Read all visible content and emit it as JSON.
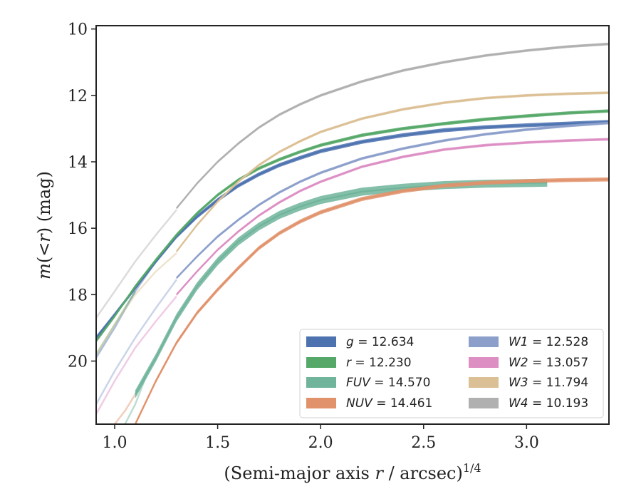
{
  "chart_data": {
    "type": "line",
    "title": "",
    "xlabel_main": "(Semi-major axis ",
    "xlabel_var": "r",
    "xlabel_tail": " / arcsec)",
    "xlabel_sup": "1/4",
    "ylabel_var1": "m",
    "ylabel_mid": "(<",
    "ylabel_var2": "r",
    "ylabel_tail": ") (mag)",
    "xlim": [
      0.91,
      3.4
    ],
    "ylim": [
      21.9,
      9.9
    ],
    "y_inverted": true,
    "xticks": [
      1.0,
      1.5,
      2.0,
      2.5,
      3.0
    ],
    "xtick_labels": [
      "1.0",
      "1.5",
      "2.0",
      "2.5",
      "3.0"
    ],
    "yticks": [
      10,
      12,
      14,
      16,
      18,
      20
    ],
    "ytick_labels": [
      "10",
      "12",
      "14",
      "16",
      "18",
      "20"
    ],
    "grid": false,
    "legend_position": "lower-right",
    "series": [
      {
        "band": "g",
        "label_value": "12.634",
        "color": "#4c72b0",
        "band_width": 0.06,
        "x": [
          0.91,
          1.0,
          1.1,
          1.2,
          1.3,
          1.4,
          1.5,
          1.6,
          1.7,
          1.8,
          1.9,
          2.0,
          2.2,
          2.4,
          2.6,
          2.8,
          3.0,
          3.2,
          3.4
        ],
        "y": [
          19.3,
          18.6,
          17.8,
          17.0,
          16.25,
          15.65,
          15.15,
          14.72,
          14.38,
          14.1,
          13.88,
          13.68,
          13.4,
          13.2,
          13.05,
          12.96,
          12.9,
          12.85,
          12.8
        ]
      },
      {
        "band": "r",
        "label_value": "12.230",
        "color": "#55a868",
        "band_width": 0.05,
        "x": [
          0.91,
          1.0,
          1.1,
          1.2,
          1.3,
          1.4,
          1.5,
          1.6,
          1.7,
          1.8,
          1.9,
          2.0,
          2.2,
          2.4,
          2.6,
          2.8,
          3.0,
          3.2,
          3.4
        ],
        "y": [
          19.4,
          18.65,
          17.75,
          16.95,
          16.2,
          15.55,
          15.0,
          14.55,
          14.2,
          13.93,
          13.7,
          13.5,
          13.2,
          13.0,
          12.85,
          12.72,
          12.62,
          12.53,
          12.47
        ]
      },
      {
        "band": "FUV",
        "label_value": "14.570",
        "color": "#6fb49b",
        "band_width": 0.12,
        "x": [
          1.1,
          1.2,
          1.3,
          1.4,
          1.5,
          1.6,
          1.7,
          1.8,
          1.9,
          2.0,
          2.2,
          2.4,
          2.6,
          2.8,
          3.0,
          3.1
        ],
        "y": [
          21.0,
          19.9,
          18.7,
          17.75,
          17.0,
          16.4,
          15.95,
          15.6,
          15.35,
          15.15,
          14.9,
          14.78,
          14.7,
          14.66,
          14.64,
          14.63
        ]
      },
      {
        "band": "NUV",
        "label_value": "14.461",
        "color": "#e1926b",
        "band_width": 0.06,
        "x": [
          1.1,
          1.2,
          1.3,
          1.4,
          1.5,
          1.6,
          1.7,
          1.8,
          1.9,
          2.0,
          2.2,
          2.4,
          2.6,
          2.8,
          3.0,
          3.2,
          3.4
        ],
        "y": [
          21.9,
          20.6,
          19.45,
          18.55,
          17.85,
          17.2,
          16.6,
          16.15,
          15.8,
          15.52,
          15.12,
          14.88,
          14.72,
          14.63,
          14.58,
          14.55,
          14.53
        ]
      },
      {
        "band": "W1",
        "label_value": "12.528",
        "color": "#8c9fcb",
        "band_width": 0.04,
        "x": [
          1.3,
          1.4,
          1.5,
          1.6,
          1.7,
          1.8,
          1.9,
          2.0,
          2.2,
          2.4,
          2.6,
          2.8,
          3.0,
          3.2,
          3.4
        ],
        "y": [
          17.5,
          16.85,
          16.25,
          15.75,
          15.3,
          14.92,
          14.6,
          14.33,
          13.9,
          13.6,
          13.36,
          13.17,
          13.03,
          12.92,
          12.83
        ]
      },
      {
        "band": "W2",
        "label_value": "13.057",
        "color": "#dd8fc4",
        "band_width": 0.04,
        "x": [
          1.3,
          1.4,
          1.5,
          1.6,
          1.7,
          1.8,
          1.9,
          2.0,
          2.2,
          2.4,
          2.6,
          2.8,
          3.0,
          3.2,
          3.4
        ],
        "y": [
          18.0,
          17.3,
          16.65,
          16.1,
          15.62,
          15.22,
          14.88,
          14.6,
          14.15,
          13.85,
          13.63,
          13.5,
          13.42,
          13.36,
          13.32
        ]
      },
      {
        "band": "W3",
        "label_value": "11.794",
        "color": "#dcc095",
        "band_width": 0.04,
        "x": [
          1.3,
          1.4,
          1.5,
          1.6,
          1.7,
          1.8,
          1.9,
          2.0,
          2.2,
          2.4,
          2.6,
          2.8,
          3.0,
          3.2,
          3.4
        ],
        "y": [
          16.7,
          15.9,
          15.2,
          14.6,
          14.1,
          13.7,
          13.38,
          13.1,
          12.7,
          12.42,
          12.22,
          12.08,
          12.0,
          11.95,
          11.92
        ]
      },
      {
        "band": "W4",
        "label_value": "10.193",
        "color": "#b0b0b0",
        "band_width": 0.04,
        "x": [
          1.3,
          1.4,
          1.5,
          1.6,
          1.7,
          1.8,
          1.9,
          2.0,
          2.2,
          2.4,
          2.6,
          2.8,
          3.0,
          3.2,
          3.4
        ],
        "y": [
          15.4,
          14.65,
          14.0,
          13.45,
          12.97,
          12.58,
          12.27,
          12.0,
          11.58,
          11.25,
          11.0,
          10.8,
          10.65,
          10.53,
          10.45
        ]
      }
    ],
    "faint_extensions": [
      {
        "band": "g",
        "color": "#4c72b0",
        "x": [
          0.91,
          1.0,
          1.1,
          1.2
        ],
        "y": [
          19.9,
          19.0,
          17.9,
          17.0
        ]
      },
      {
        "band": "r",
        "color": "#55a868",
        "x": [
          0.91,
          1.0,
          1.1
        ],
        "y": [
          19.8,
          18.9,
          17.9
        ]
      },
      {
        "band": "FUV",
        "color": "#6fb49b",
        "x": [
          1.05,
          1.1,
          1.15
        ],
        "y": [
          21.9,
          21.3,
          20.5
        ]
      },
      {
        "band": "W1",
        "color": "#8c9fcb",
        "x": [
          0.91,
          1.0,
          1.1,
          1.2,
          1.3
        ],
        "y": [
          21.3,
          20.3,
          19.3,
          18.4,
          17.55
        ]
      },
      {
        "band": "W2",
        "color": "#dd8fc4",
        "x": [
          0.91,
          1.0,
          1.1,
          1.2,
          1.3
        ],
        "y": [
          21.6,
          20.6,
          19.6,
          18.8,
          18.05
        ]
      },
      {
        "band": "W3",
        "color": "#dcc095",
        "x": [
          0.91,
          1.0,
          1.1,
          1.2,
          1.3
        ],
        "y": [
          19.8,
          18.9,
          18.0,
          17.3,
          16.75
        ]
      },
      {
        "band": "W4",
        "color": "#b0b0b0",
        "x": [
          0.91,
          1.0,
          1.1,
          1.2,
          1.3
        ],
        "y": [
          18.7,
          17.9,
          17.0,
          16.2,
          15.45
        ]
      },
      {
        "band": "NUV",
        "color": "#e1926b",
        "x": [
          1.0,
          1.05,
          1.1
        ],
        "y": [
          21.9,
          21.5,
          21.0
        ]
      }
    ],
    "legend": [
      {
        "band": "g",
        "op": " = ",
        "value": "12.634",
        "color": "#4c72b0"
      },
      {
        "band": "r",
        "op": " = ",
        "value": "12.230",
        "color": "#55a868"
      },
      {
        "band": "FUV",
        "op": " = ",
        "value": "14.570",
        "color": "#6fb49b"
      },
      {
        "band": "NUV",
        "op": " = ",
        "value": "14.461",
        "color": "#e1926b"
      },
      {
        "band": "W1",
        "op": " = ",
        "value": "12.528",
        "color": "#8c9fcb"
      },
      {
        "band": "W2",
        "op": " = ",
        "value": "13.057",
        "color": "#dd8fc4"
      },
      {
        "band": "W3",
        "op": " = ",
        "value": "11.794",
        "color": "#dcc095"
      },
      {
        "band": "W4",
        "op": " = ",
        "value": "10.193",
        "color": "#b0b0b0"
      }
    ]
  }
}
